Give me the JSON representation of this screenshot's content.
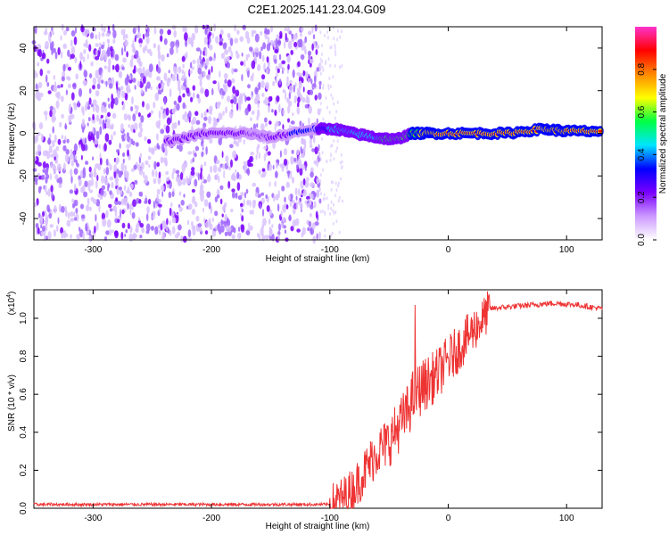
{
  "title": "C2E1.2025.141.23.04.G09",
  "chart_data": [
    {
      "type": "heatmap",
      "xlabel": "Height of straight line (km)",
      "ylabel": "Frequency (Hz)",
      "xlim": [
        -350,
        130
      ],
      "ylim": [
        -50,
        50
      ],
      "xticks": [
        -300,
        -200,
        -100,
        0,
        100
      ],
      "yticks": [
        -40,
        -20,
        0,
        20,
        40
      ],
      "xtick_labels": [
        "-300",
        "-200",
        "-100",
        "0",
        "100"
      ],
      "ytick_labels": [
        "-40",
        "-20",
        "0",
        "20",
        "40"
      ],
      "colorbar": {
        "label": "Normalized spectral amplitude",
        "range": [
          0,
          1
        ],
        "ticks": [
          0.0,
          0.2,
          0.4,
          0.6,
          0.8
        ],
        "tick_labels": [
          "0.0",
          "0.2",
          "0.4",
          "0.6",
          "0.8"
        ],
        "colors": [
          "#ffffff",
          "#cc99ff",
          "#7a00ff",
          "#0000ff",
          "#00e5ff",
          "#00ff44",
          "#ffff00",
          "#ff8800",
          "#ff0000",
          "#ff33cc"
        ]
      },
      "noise_region_x": [
        -350,
        -108
      ],
      "signal_track": [
        {
          "x": -238,
          "y": -4,
          "amp": 0.25
        },
        {
          "x": -205,
          "y": 0,
          "amp": 0.3
        },
        {
          "x": -170,
          "y": 0,
          "amp": 0.35
        },
        {
          "x": -150,
          "y": -2,
          "amp": 0.3
        },
        {
          "x": -115,
          "y": 2,
          "amp": 0.45
        },
        {
          "x": -95,
          "y": 2,
          "amp": 0.55
        },
        {
          "x": -80,
          "y": 0,
          "amp": 0.55
        },
        {
          "x": -60,
          "y": -2,
          "amp": 0.65
        },
        {
          "x": -45,
          "y": -3,
          "amp": 0.75
        },
        {
          "x": -30,
          "y": 0,
          "amp": 0.8
        },
        {
          "x": -10,
          "y": 0,
          "amp": 0.85
        },
        {
          "x": 20,
          "y": 0,
          "amp": 0.9
        },
        {
          "x": 50,
          "y": 0,
          "amp": 0.85
        },
        {
          "x": 80,
          "y": 2,
          "amp": 0.95
        },
        {
          "x": 100,
          "y": 1,
          "amp": 0.9
        },
        {
          "x": 130,
          "y": 1,
          "amp": 0.85
        }
      ],
      "grid": false
    },
    {
      "type": "line",
      "xlabel": "Height of straight line (km)",
      "ylabel": "SNR (10 * v/v)",
      "y_multiplier_label": "(x10",
      "y_multiplier_exp": "4",
      "xlim": [
        -350,
        130
      ],
      "ylim": [
        0,
        1.15
      ],
      "xticks": [
        -300,
        -200,
        -100,
        0,
        100
      ],
      "yticks": [
        0.0,
        0.2,
        0.4,
        0.6,
        0.8,
        1.0
      ],
      "xtick_labels": [
        "-300",
        "-200",
        "-100",
        "0",
        "100"
      ],
      "ytick_labels": [
        "0.0",
        "0.2",
        "0.4",
        "0.6",
        "0.8",
        "1.0"
      ],
      "color": "#ee3333",
      "series": [
        {
          "x": [
            -350,
            -100,
            -90,
            -80,
            -70,
            -60,
            -50,
            -40,
            -35,
            -30,
            -25,
            -20,
            -10,
            0,
            10,
            20,
            30,
            35,
            50,
            70,
            90,
            110,
            130
          ],
          "values": [
            0.02,
            0.02,
            0.05,
            0.1,
            0.2,
            0.3,
            0.35,
            0.45,
            0.5,
            0.58,
            0.62,
            0.65,
            0.7,
            0.78,
            0.85,
            0.93,
            1.0,
            1.05,
            1.06,
            1.07,
            1.08,
            1.07,
            1.05
          ]
        }
      ],
      "spike": {
        "x": -28,
        "y": 1.07
      },
      "grid": false
    }
  ]
}
